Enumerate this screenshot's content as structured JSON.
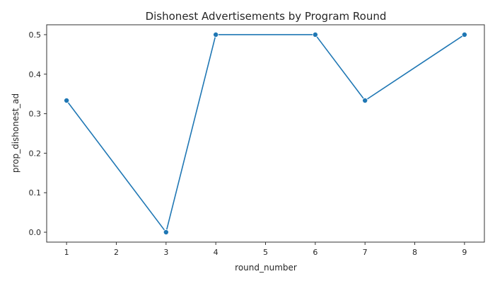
{
  "chart_data": {
    "type": "line",
    "title": "Dishonest Advertisements by Program Round",
    "xlabel": "round_number",
    "ylabel": "prop_dishonest_ad",
    "x": [
      1,
      3,
      4,
      6,
      7,
      9
    ],
    "series": [
      {
        "values": [
          0.3333,
          0.0,
          0.5,
          0.5,
          0.3333,
          0.5
        ],
        "color": "#1f77b4",
        "marker": "circle"
      }
    ],
    "xticks": [
      1,
      2,
      3,
      4,
      5,
      6,
      7,
      8,
      9
    ],
    "yticks": [
      0.0,
      0.1,
      0.2,
      0.3,
      0.4,
      0.5
    ],
    "ytick_labels": [
      "0.0",
      "0.1",
      "0.2",
      "0.3",
      "0.4",
      "0.5"
    ],
    "xlim": [
      0.6,
      9.4
    ],
    "ylim": [
      -0.025,
      0.525
    ],
    "grid": false,
    "legend": "none"
  }
}
